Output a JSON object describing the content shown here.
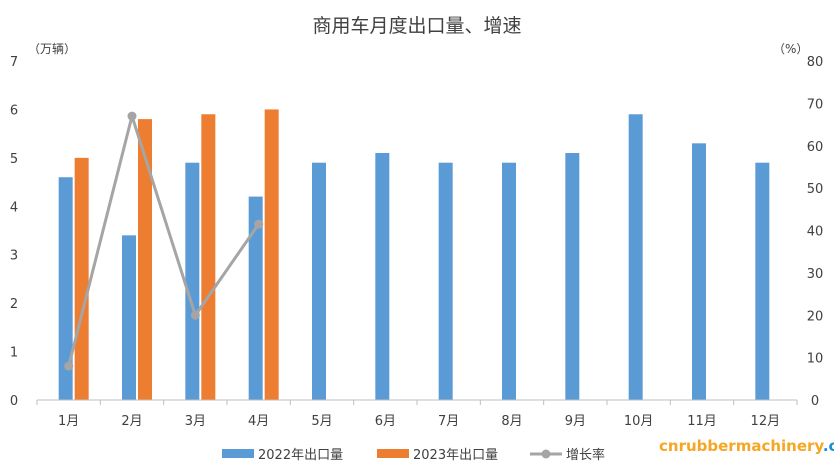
{
  "chart_data": {
    "type": "bar",
    "title": "商用车月度出口量、增速",
    "left_unit": "（万辆）",
    "right_unit": "（%）",
    "categories": [
      "1月",
      "2月",
      "3月",
      "4月",
      "5月",
      "6月",
      "7月",
      "8月",
      "9月",
      "10月",
      "11月",
      "12月"
    ],
    "y_left": {
      "ylim": [
        0,
        7
      ],
      "ticks": [
        "0",
        "1",
        "2",
        "3",
        "4",
        "5",
        "6",
        "7"
      ]
    },
    "y_right": {
      "ylim": [
        0,
        80
      ],
      "ticks": [
        "0",
        "10",
        "20",
        "30",
        "40",
        "50",
        "60",
        "70",
        "80"
      ]
    },
    "grid": false,
    "legend_position": "bottom",
    "series": [
      {
        "name": "2022年出口量",
        "kind": "bar",
        "axis": "left",
        "color": "#5b9bd5",
        "values": [
          4.6,
          3.4,
          4.9,
          4.2,
          4.9,
          5.1,
          4.9,
          4.9,
          5.1,
          5.9,
          5.3,
          4.9
        ]
      },
      {
        "name": "2023年出口量",
        "kind": "bar",
        "axis": "left",
        "color": "#ed7d31",
        "values": [
          5.0,
          5.8,
          5.9,
          6.0,
          null,
          null,
          null,
          null,
          null,
          null,
          null,
          null
        ]
      },
      {
        "name": "增长率",
        "kind": "line",
        "axis": "right",
        "color": "#a5a5a5",
        "values": [
          8,
          67,
          20,
          41.5,
          null,
          null,
          null,
          null,
          null,
          null,
          null,
          null
        ]
      }
    ]
  },
  "watermark": {
    "part1": "cnrubbermachinery",
    "part2": ".com"
  }
}
